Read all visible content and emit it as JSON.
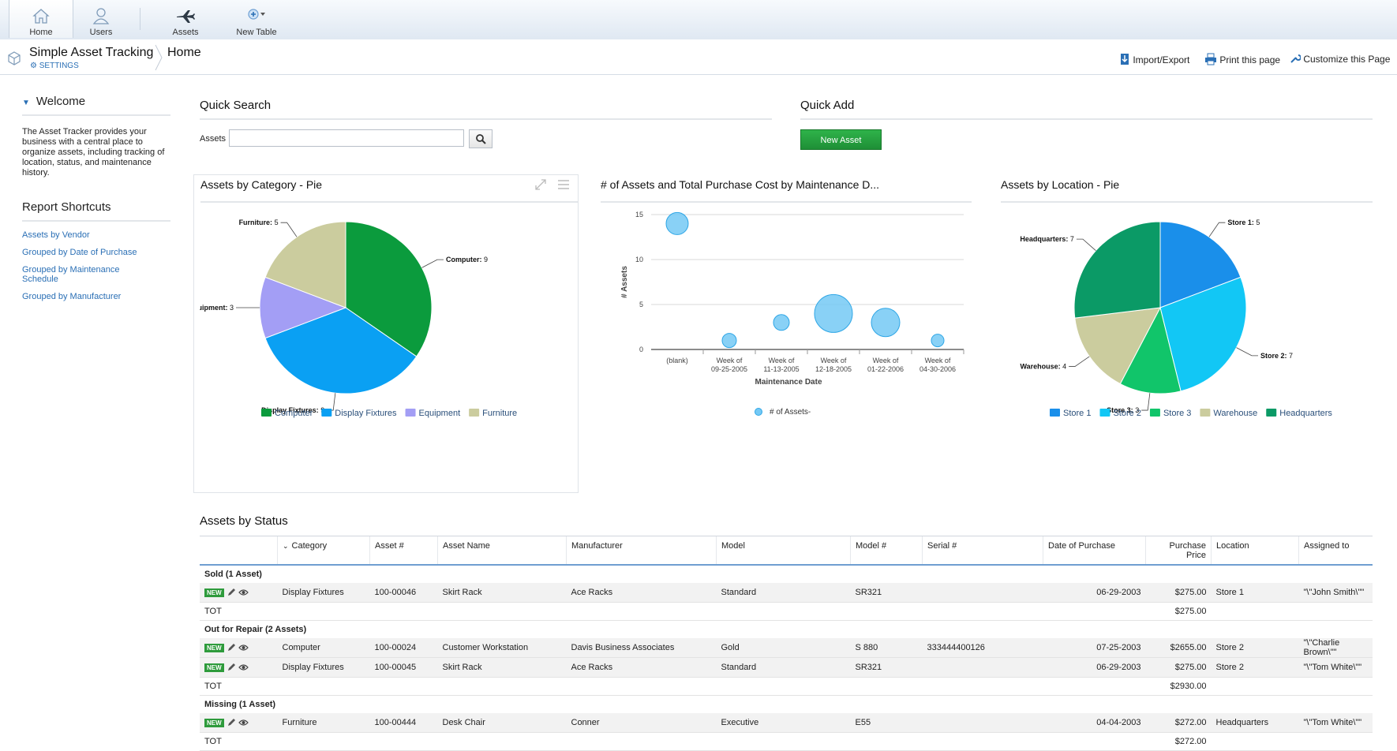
{
  "toolbar": {
    "items": [
      {
        "label": "Home",
        "icon": "home-icon"
      },
      {
        "label": "Users",
        "icon": "user-icon"
      },
      {
        "label": "Assets",
        "icon": "airplane-icon"
      },
      {
        "label": "New Table",
        "icon": "add-table-icon"
      }
    ]
  },
  "header": {
    "app_title": "Simple Asset Tracking",
    "settings_label": "SETTINGS",
    "breadcrumb": "Home",
    "actions": [
      {
        "label": "Import/Export",
        "icon": "import-export-icon"
      },
      {
        "label": "Print this page",
        "icon": "printer-icon"
      },
      {
        "label": "Customize this Page",
        "icon": "wrench-icon"
      }
    ]
  },
  "sidebar": {
    "welcome_title": "Welcome",
    "welcome_text": "The Asset Tracker provides your business with a central place to organize assets, including tracking of location, status, and maintenance history.",
    "shortcuts_title": "Report Shortcuts",
    "shortcuts": [
      "Assets by Vendor",
      "Grouped by Date of Purchase",
      "Grouped by Maintenance Schedule",
      "Grouped by Manufacturer"
    ]
  },
  "quick_search": {
    "title": "Quick Search",
    "label": "Assets",
    "value": ""
  },
  "quick_add": {
    "title": "Quick Add",
    "button": "New Asset"
  },
  "charts_titles": {
    "category": "Assets by Category - Pie",
    "maintenance": "# of Assets and Total Purchase Cost by Maintenance D...",
    "location": "Assets by Location - Pie"
  },
  "chart_data": [
    {
      "type": "pie",
      "title": "Assets by Category - Pie",
      "categories": [
        "Computer",
        "Display Fixtures",
        "Equipment",
        "Furniture"
      ],
      "values": [
        9,
        9,
        3,
        5
      ],
      "colors": [
        "#0b9b3d",
        "#0aa0f3",
        "#a39ef5",
        "#cbcc9e"
      ],
      "legend": "bottom"
    },
    {
      "type": "scatter",
      "title": "# of Assets and Total Purchase Cost by Maintenance D...",
      "xlabel": "Maintenance Date",
      "ylabel": "# Assets",
      "categories": [
        "(blank)",
        "Week of 09-25-2005",
        "Week of 11-13-2005",
        "Week of 12-18-2005",
        "Week of 01-22-2006",
        "Week of 04-30-2006"
      ],
      "series": [
        {
          "name": "# of Assets-",
          "values": [
            14,
            1,
            3,
            4,
            3,
            1
          ],
          "bubble_size": [
            2,
            1,
            1.2,
            4,
            2.8,
            0.8
          ]
        }
      ],
      "ylim": [
        0,
        15
      ],
      "yticks": [
        0,
        5,
        10,
        15
      ],
      "grid": true,
      "legend": "bottom"
    },
    {
      "type": "pie",
      "title": "Assets by Location - Pie",
      "categories": [
        "Store 1",
        "Store 2",
        "Store 3",
        "Warehouse",
        "Headquarters"
      ],
      "values": [
        5,
        7,
        3,
        4,
        7
      ],
      "colors": [
        "#1a8fea",
        "#12c7f5",
        "#11c56a",
        "#cbcc9e",
        "#0b9a66"
      ],
      "legend": "bottom"
    }
  ],
  "status_table": {
    "title": "Assets by Status",
    "columns": [
      "Category",
      "Asset #",
      "Asset Name",
      "Manufacturer",
      "Model",
      "Model #",
      "Serial #",
      "Date of Purchase",
      "Purchase Price",
      "Location",
      "Assigned to"
    ],
    "badge": "NEW",
    "total_label": "TOT",
    "groups": [
      {
        "label": "Sold  (1 Asset)",
        "total": "$275.00",
        "rows": [
          [
            "Display Fixtures",
            "100-00046",
            "Skirt Rack",
            "Ace Racks",
            "Standard",
            "SR321",
            "",
            "06-29-2003",
            "$275.00",
            "Store 1",
            "\"\\\"John Smith\\\"\""
          ]
        ]
      },
      {
        "label": "Out for Repair  (2 Assets)",
        "total": "$2930.00",
        "rows": [
          [
            "Computer",
            "100-00024",
            "Customer Workstation",
            "Davis Business Associates",
            "Gold",
            "S 880",
            "333444400126",
            "07-25-2003",
            "$2655.00",
            "Store 2",
            "\"\\\"Charlie Brown\\\"\""
          ],
          [
            "Display Fixtures",
            "100-00045",
            "Skirt Rack",
            "Ace Racks",
            "Standard",
            "SR321",
            "",
            "06-29-2003",
            "$275.00",
            "Store 2",
            "\"\\\"Tom White\\\"\""
          ]
        ]
      },
      {
        "label": "Missing  (1 Asset)",
        "total": "$272.00",
        "rows": [
          [
            "Furniture",
            "100-00444",
            "Desk Chair",
            "Conner",
            "Executive",
            "E55",
            "",
            "04-04-2003",
            "$272.00",
            "Headquarters",
            "\"\\\"Tom White\\\"\""
          ]
        ]
      }
    ]
  }
}
